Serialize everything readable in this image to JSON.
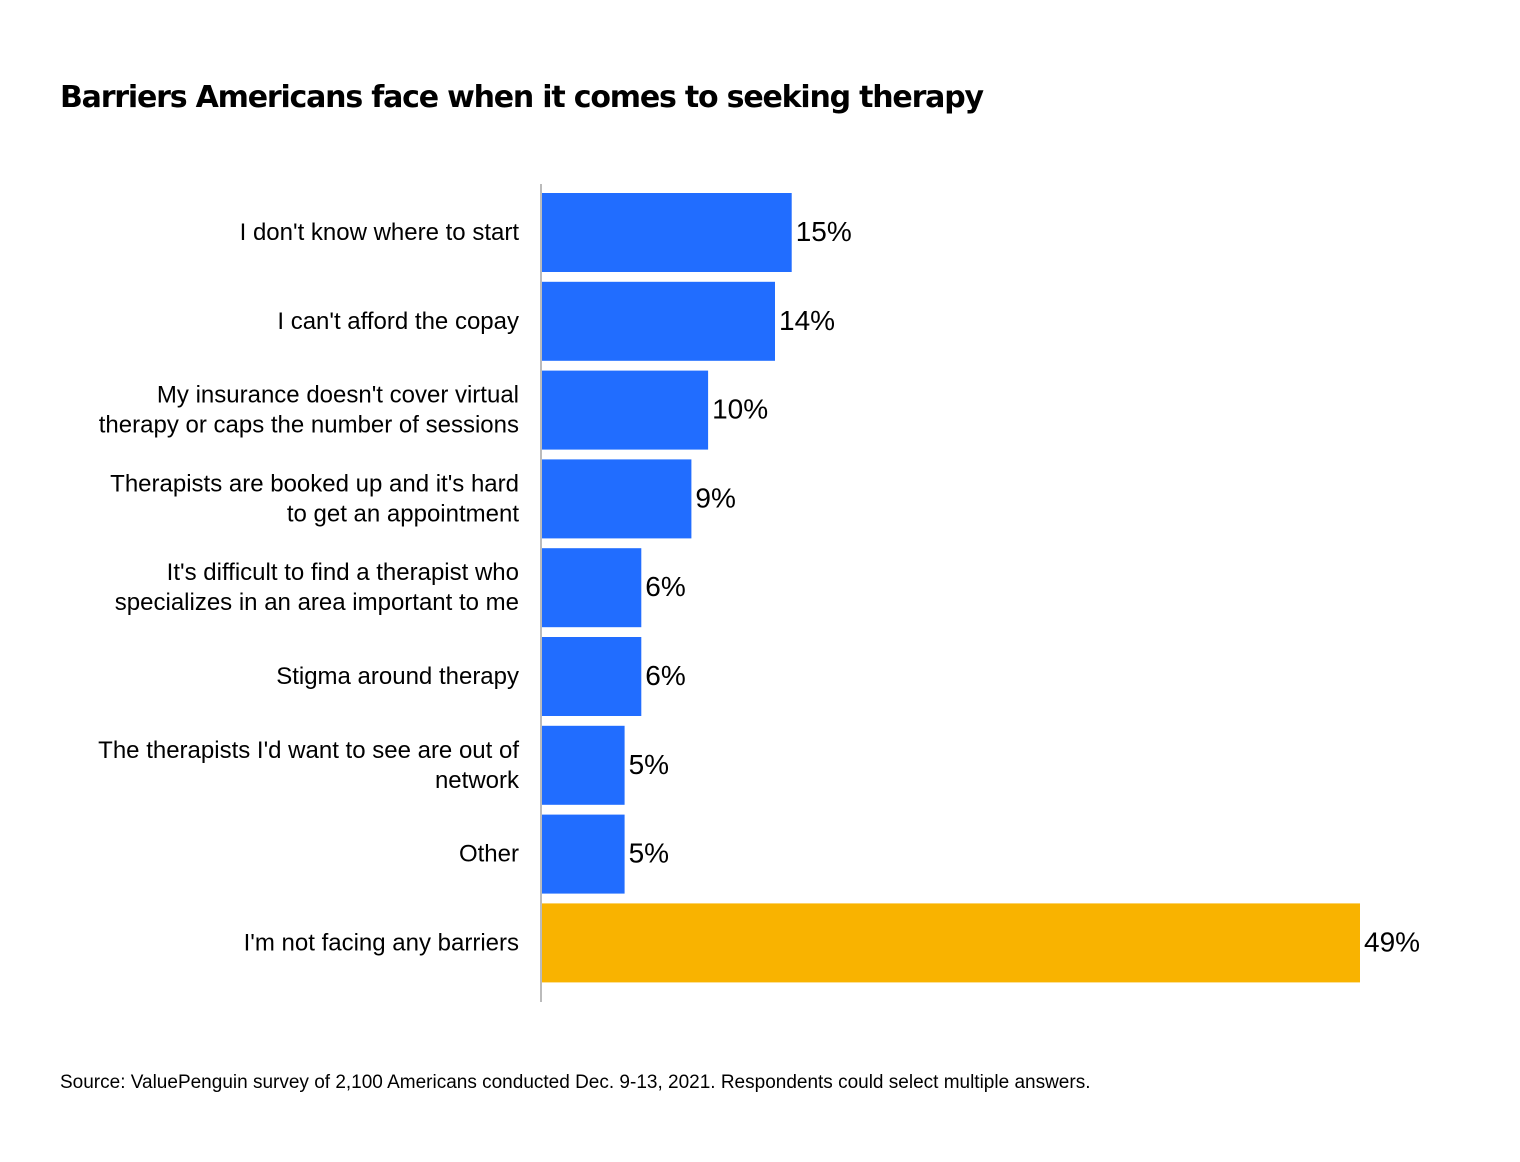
{
  "chart_data": {
    "type": "bar",
    "orientation": "horizontal",
    "title": "Barriers Americans face when it comes to seeking therapy",
    "source": "Source: ValuePenguin survey of 2,100 Americans conducted Dec. 9-13, 2021. Respondents could select multiple answers.",
    "xlim": [
      0,
      49
    ],
    "grid": false,
    "value_suffix": "%",
    "colors": {
      "barrier": "#216DFF",
      "no_barrier": "#F9B300",
      "axis": "#BBBBBB"
    },
    "categories": [
      [
        "I don't know where to start"
      ],
      [
        "I can't afford the copay"
      ],
      [
        "My insurance doesn't cover virtual",
        "therapy or caps the number of sessions"
      ],
      [
        "Therapists are booked up and it's hard",
        "to get an appointment"
      ],
      [
        "It's difficult to find a therapist who",
        "specializes in an area important to me"
      ],
      [
        "Stigma around therapy"
      ],
      [
        "The therapists I'd want to see are out of",
        "network"
      ],
      [
        "Other"
      ],
      [
        "I'm not facing any barriers"
      ]
    ],
    "values": [
      15,
      14,
      10,
      9,
      6,
      6,
      5,
      5,
      49
    ],
    "value_labels": [
      "15%",
      "14%",
      "10%",
      "9%",
      "6%",
      "6%",
      "5%",
      "5%",
      "49%"
    ],
    "bar_color_keys": [
      "barrier",
      "barrier",
      "barrier",
      "barrier",
      "barrier",
      "barrier",
      "barrier",
      "barrier",
      "no_barrier"
    ]
  }
}
